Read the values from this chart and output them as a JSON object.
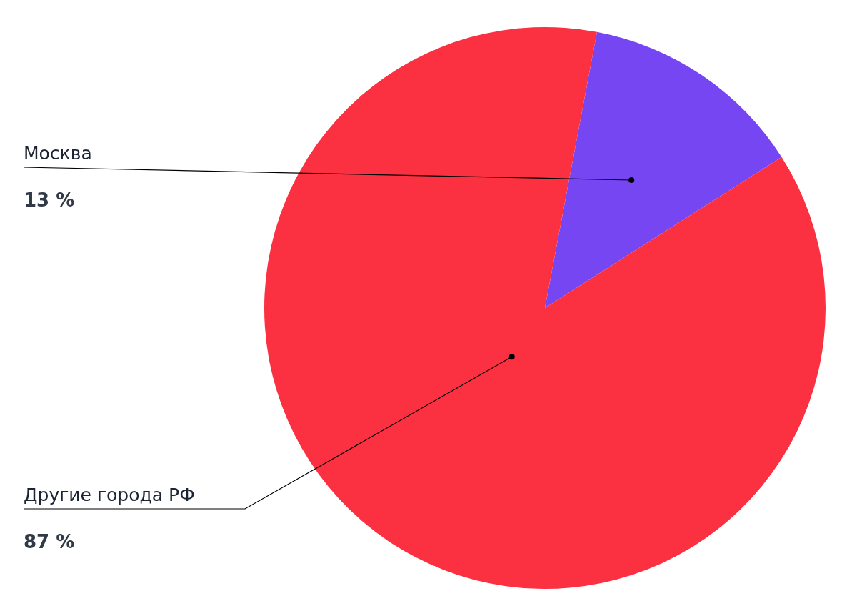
{
  "chart_data": {
    "type": "pie",
    "categories": [
      "Москва",
      "Другие города РФ"
    ],
    "values": [
      13,
      87
    ],
    "colors": [
      "#7546f2",
      "#fb3040"
    ],
    "value_labels": [
      "13 %",
      "87 %"
    ]
  }
}
